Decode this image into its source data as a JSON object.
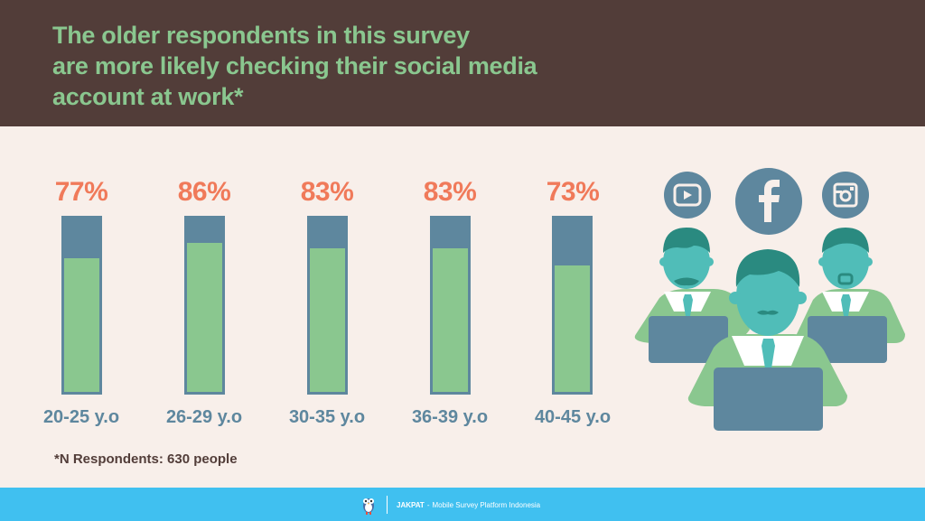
{
  "header": {
    "title_lines": [
      "The older respondents in this survey",
      "are more likely checking their social media",
      "account at work*"
    ]
  },
  "colors": {
    "header_bg": "#523d39",
    "title": "#8ac78f",
    "percent": "#f07a5a",
    "bar_frame": "#5e879e",
    "bar_fill": "#8ac78f",
    "page_bg": "#f8efea",
    "footer_bg": "#40c0f0"
  },
  "chart_data": {
    "type": "bar",
    "title": "The older respondents in this survey are more likely checking their social media account at work*",
    "categories": [
      "20-25 y.o",
      "26-29 y.o",
      "30-35 y.o",
      "36-39 y.o",
      "40-45 y.o"
    ],
    "values": [
      77,
      86,
      83,
      83,
      73
    ],
    "value_labels": [
      "77%",
      "86%",
      "83%",
      "83%",
      "73%"
    ],
    "xlabel": "",
    "ylabel": "",
    "ylim": [
      0,
      100
    ],
    "grid": false,
    "legend": null
  },
  "note": "*N Respondents: 630 people",
  "illustration": {
    "icons": [
      "youtube-icon",
      "facebook-icon",
      "instagram-icon"
    ],
    "description": "Three office workers using laptops"
  },
  "footer": {
    "brand": "JAKPAT",
    "separator": " - ",
    "tagline": "Mobile Survey Platform Indonesia"
  }
}
